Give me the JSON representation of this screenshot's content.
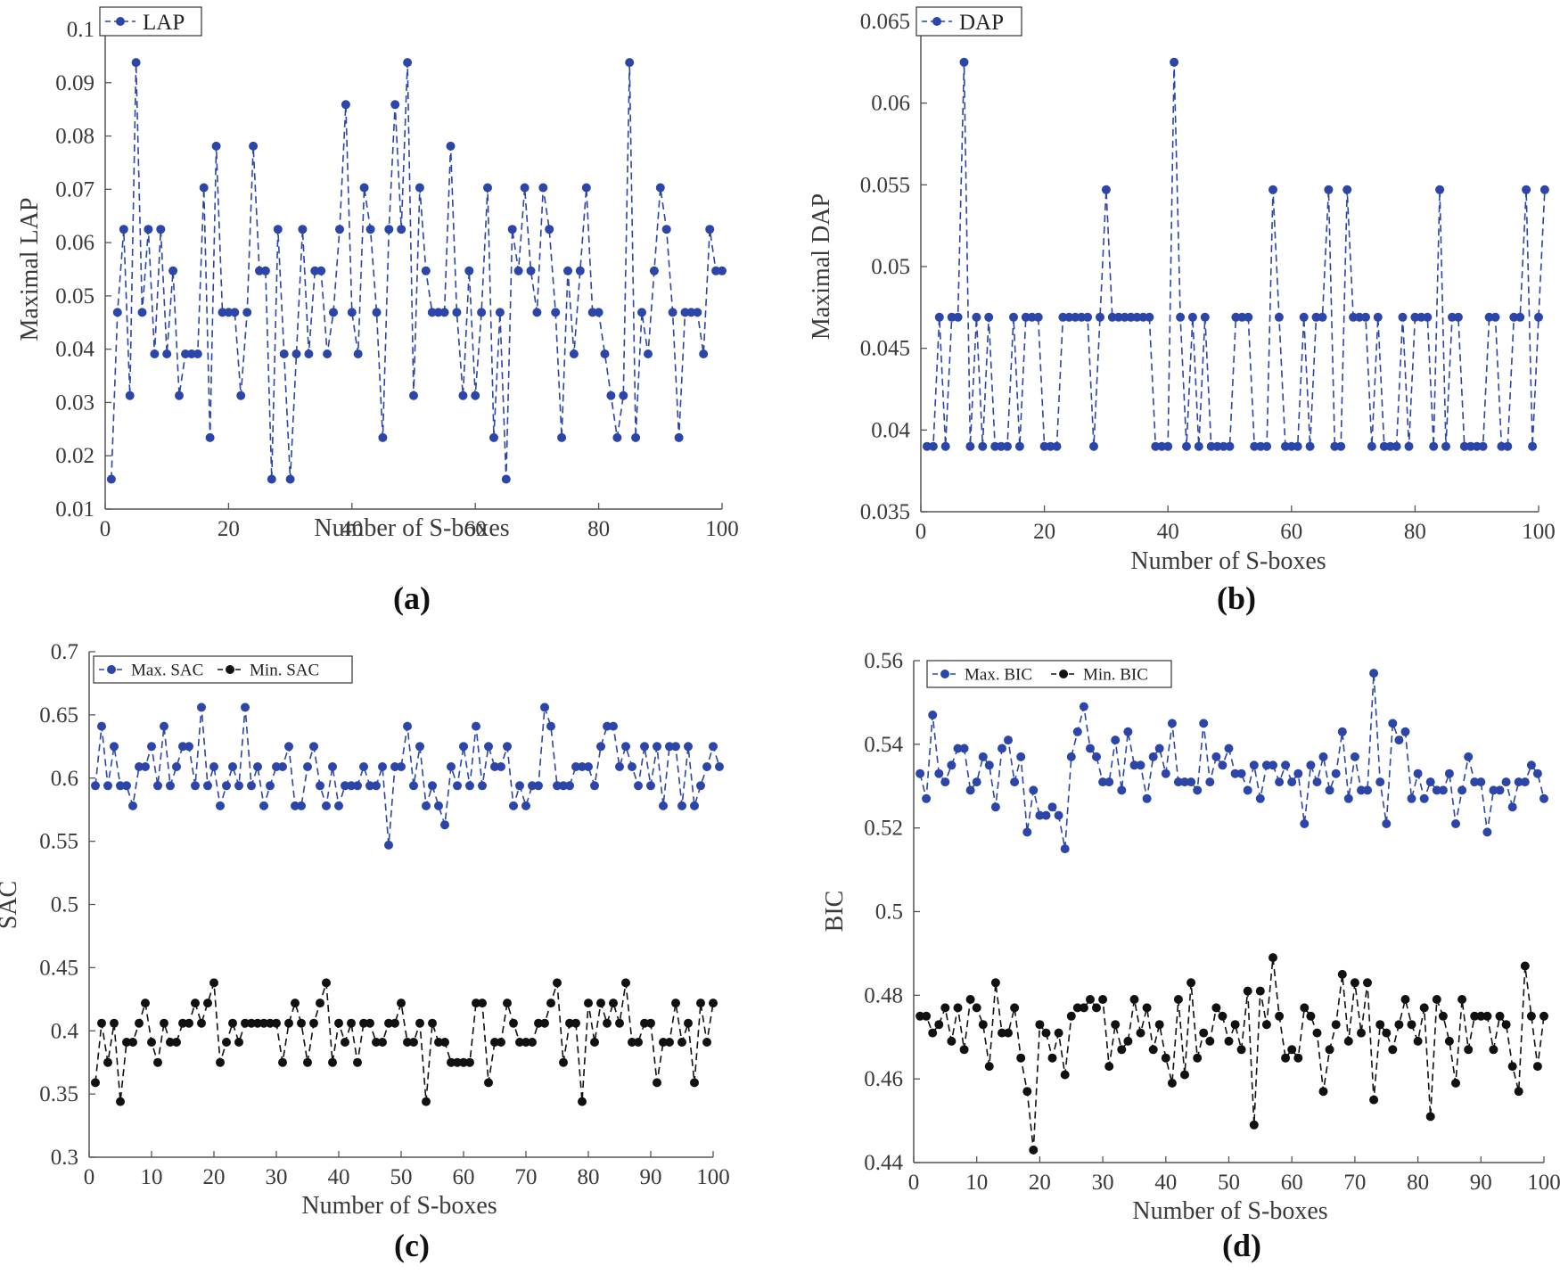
{
  "colors": {
    "blue": "#2c45a8",
    "black": "#111111",
    "axis": "#555555"
  },
  "chart_data": [
    {
      "id": "a",
      "type": "line",
      "caption": "(a)",
      "xlabel": "Number of S-boxes",
      "ylabel": "Maximal LAP",
      "xlim": [
        0,
        100
      ],
      "ylim": [
        0.01,
        0.1
      ],
      "xticks": [
        0,
        20,
        40,
        60,
        80,
        100
      ],
      "yticks": [
        0.01,
        0.02,
        0.03,
        0.04,
        0.05,
        0.06,
        0.07,
        0.08,
        0.09,
        0.1
      ],
      "xtick_labels": [
        "0",
        "20",
        "40",
        "60",
        "80",
        "100"
      ],
      "ytick_labels": [
        "0.01",
        "0.02",
        "0.03",
        "0.04",
        "0.05",
        "0.06",
        "0.07",
        "0.08",
        "0.09",
        "0.1"
      ],
      "legend": "top-left",
      "grid": false,
      "series": [
        {
          "name": "LAP",
          "color": "blue",
          "values": [
            0.0156,
            0.0469,
            0.0625,
            0.0313,
            0.0938,
            0.0469,
            0.0625,
            0.0391,
            0.0625,
            0.0391,
            0.0547,
            0.0313,
            0.0391,
            0.0391,
            0.0391,
            0.0703,
            0.0234,
            0.0781,
            0.0469,
            0.0469,
            0.0469,
            0.0313,
            0.0469,
            0.0781,
            0.0547,
            0.0547,
            0.0156,
            0.0625,
            0.0391,
            0.0156,
            0.0391,
            0.0625,
            0.0391,
            0.0547,
            0.0547,
            0.0391,
            0.0469,
            0.0625,
            0.0859,
            0.0469,
            0.0391,
            0.0703,
            0.0625,
            0.0469,
            0.0234,
            0.0625,
            0.0859,
            0.0625,
            0.0938,
            0.0313,
            0.0703,
            0.0547,
            0.0469,
            0.0469,
            0.0469,
            0.0781,
            0.0469,
            0.0313,
            0.0547,
            0.0313,
            0.0469,
            0.0703,
            0.0234,
            0.0469,
            0.0156,
            0.0625,
            0.0547,
            0.0703,
            0.0547,
            0.0469,
            0.0703,
            0.0625,
            0.0469,
            0.0234,
            0.0547,
            0.0391,
            0.0547,
            0.0703,
            0.0469,
            0.0469,
            0.0391,
            0.0313,
            0.0234,
            0.0313,
            0.0938,
            0.0234,
            0.0469,
            0.0391,
            0.0547,
            0.0703,
            0.0625,
            0.0469,
            0.0234,
            0.0469,
            0.0469,
            0.0469,
            0.0391,
            0.0625,
            0.0547,
            0.0547
          ]
        }
      ]
    },
    {
      "id": "b",
      "type": "line",
      "caption": "(b)",
      "xlabel": "Number of S-boxes",
      "ylabel": "Maximal DAP",
      "xlim": [
        0,
        100
      ],
      "ylim": [
        0.035,
        0.065
      ],
      "xticks": [
        0,
        20,
        40,
        60,
        80,
        100
      ],
      "yticks": [
        0.035,
        0.04,
        0.045,
        0.05,
        0.055,
        0.06,
        0.065
      ],
      "xtick_labels": [
        "0",
        "20",
        "40",
        "60",
        "80",
        "100"
      ],
      "ytick_labels": [
        "0.035",
        "0.04",
        "0.045",
        "0.05",
        "0.055",
        "0.06",
        "0.065"
      ],
      "legend": "top-left",
      "grid": false,
      "series": [
        {
          "name": "DAP",
          "color": "blue",
          "values": [
            0.039,
            0.039,
            0.0469,
            0.039,
            0.0469,
            0.0469,
            0.0625,
            0.039,
            0.0469,
            0.039,
            0.0469,
            0.039,
            0.039,
            0.039,
            0.0469,
            0.039,
            0.0469,
            0.0469,
            0.0469,
            0.039,
            0.039,
            0.039,
            0.0469,
            0.0469,
            0.0469,
            0.0469,
            0.0469,
            0.039,
            0.0469,
            0.0547,
            0.0469,
            0.0469,
            0.0469,
            0.0469,
            0.0469,
            0.0469,
            0.0469,
            0.039,
            0.039,
            0.039,
            0.0625,
            0.0469,
            0.039,
            0.0469,
            0.039,
            0.0469,
            0.039,
            0.039,
            0.039,
            0.039,
            0.0469,
            0.0469,
            0.0469,
            0.039,
            0.039,
            0.039,
            0.0547,
            0.0469,
            0.039,
            0.039,
            0.039,
            0.0469,
            0.039,
            0.0469,
            0.0469,
            0.0547,
            0.039,
            0.039,
            0.0547,
            0.0469,
            0.0469,
            0.0469,
            0.039,
            0.0469,
            0.039,
            0.039,
            0.039,
            0.0469,
            0.039,
            0.0469,
            0.0469,
            0.0469,
            0.039,
            0.0547,
            0.039,
            0.0469,
            0.0469,
            0.039,
            0.039,
            0.039,
            0.039,
            0.0469,
            0.0469,
            0.039,
            0.039,
            0.0469,
            0.0469,
            0.0547,
            0.039,
            0.0469,
            0.0547
          ]
        }
      ]
    },
    {
      "id": "c",
      "type": "line",
      "caption": "(c)",
      "xlabel": "Number of S-boxes",
      "ylabel": "SAC",
      "xlim": [
        0,
        100
      ],
      "ylim": [
        0.3,
        0.7
      ],
      "xticks": [
        0,
        10,
        20,
        30,
        40,
        50,
        60,
        70,
        80,
        90,
        100
      ],
      "yticks": [
        0.3,
        0.35,
        0.4,
        0.45,
        0.5,
        0.55,
        0.6,
        0.65,
        0.7
      ],
      "xtick_labels": [
        "0",
        "10",
        "20",
        "30",
        "40",
        "50",
        "60",
        "70",
        "80",
        "90",
        "100"
      ],
      "ytick_labels": [
        "0.3",
        "0.35",
        "0.4",
        "0.45",
        "0.5",
        "0.55",
        "0.6",
        "0.65",
        "0.7"
      ],
      "legend": "top-left",
      "grid": false,
      "series": [
        {
          "name": "Max. SAC",
          "color": "blue",
          "values": [
            0.594,
            0.641,
            0.594,
            0.625,
            0.594,
            0.594,
            0.578,
            0.609,
            0.609,
            0.625,
            0.594,
            0.641,
            0.594,
            0.609,
            0.625,
            0.625,
            0.594,
            0.656,
            0.594,
            0.609,
            0.578,
            0.594,
            0.609,
            0.594,
            0.656,
            0.594,
            0.609,
            0.578,
            0.594,
            0.609,
            0.609,
            0.625,
            0.578,
            0.578,
            0.609,
            0.625,
            0.594,
            0.578,
            0.609,
            0.578,
            0.594,
            0.594,
            0.594,
            0.609,
            0.594,
            0.594,
            0.609,
            0.547,
            0.609,
            0.609,
            0.641,
            0.594,
            0.625,
            0.578,
            0.594,
            0.578,
            0.563,
            0.609,
            0.594,
            0.625,
            0.594,
            0.641,
            0.594,
            0.625,
            0.609,
            0.609,
            0.625,
            0.578,
            0.594,
            0.578,
            0.594,
            0.594,
            0.656,
            0.641,
            0.594,
            0.594,
            0.594,
            0.609,
            0.609,
            0.609,
            0.594,
            0.625,
            0.641,
            0.641,
            0.609,
            0.625,
            0.609,
            0.594,
            0.625,
            0.594,
            0.625,
            0.578,
            0.625,
            0.625,
            0.578,
            0.625,
            0.578,
            0.594,
            0.609,
            0.625,
            0.609
          ]
        },
        {
          "name": "Min. SAC",
          "color": "black",
          "values": [
            0.359,
            0.406,
            0.375,
            0.406,
            0.344,
            0.391,
            0.391,
            0.406,
            0.422,
            0.391,
            0.375,
            0.406,
            0.391,
            0.391,
            0.406,
            0.406,
            0.422,
            0.406,
            0.422,
            0.438,
            0.375,
            0.391,
            0.406,
            0.391,
            0.406,
            0.406,
            0.406,
            0.406,
            0.406,
            0.406,
            0.375,
            0.406,
            0.422,
            0.406,
            0.375,
            0.406,
            0.422,
            0.438,
            0.375,
            0.406,
            0.391,
            0.406,
            0.375,
            0.406,
            0.406,
            0.391,
            0.391,
            0.406,
            0.406,
            0.422,
            0.391,
            0.391,
            0.406,
            0.344,
            0.406,
            0.391,
            0.391,
            0.375,
            0.375,
            0.375,
            0.375,
            0.422,
            0.422,
            0.359,
            0.391,
            0.391,
            0.422,
            0.406,
            0.391,
            0.391,
            0.391,
            0.406,
            0.406,
            0.422,
            0.438,
            0.375,
            0.406,
            0.406,
            0.344,
            0.422,
            0.391,
            0.422,
            0.406,
            0.422,
            0.406,
            0.438,
            0.391,
            0.391,
            0.406,
            0.406,
            0.359,
            0.391,
            0.391,
            0.422,
            0.391,
            0.406,
            0.359,
            0.422,
            0.391,
            0.422
          ]
        }
      ]
    },
    {
      "id": "d",
      "type": "line",
      "caption": "(d)",
      "xlabel": "Number of S-boxes",
      "ylabel": "BIC",
      "xlim": [
        0,
        100
      ],
      "ylim": [
        0.44,
        0.56
      ],
      "xticks": [
        0,
        10,
        20,
        30,
        40,
        50,
        60,
        70,
        80,
        90,
        100
      ],
      "yticks": [
        0.44,
        0.46,
        0.48,
        0.5,
        0.52,
        0.54,
        0.56
      ],
      "xtick_labels": [
        "0",
        "10",
        "20",
        "30",
        "40",
        "50",
        "60",
        "70",
        "80",
        "90",
        "100"
      ],
      "ytick_labels": [
        "0.44",
        "0.46",
        "0.48",
        "0.5",
        "0.52",
        "0.54",
        "0.56"
      ],
      "legend": "top-left",
      "grid": false,
      "series": [
        {
          "name": "Max. BIC",
          "color": "blue",
          "values": [
            0.533,
            0.527,
            0.547,
            0.533,
            0.531,
            0.535,
            0.539,
            0.539,
            0.529,
            0.531,
            0.537,
            0.535,
            0.525,
            0.539,
            0.541,
            0.531,
            0.537,
            0.519,
            0.529,
            0.523,
            0.523,
            0.525,
            0.523,
            0.515,
            0.537,
            0.543,
            0.549,
            0.539,
            0.537,
            0.531,
            0.531,
            0.541,
            0.529,
            0.543,
            0.535,
            0.535,
            0.527,
            0.537,
            0.539,
            0.533,
            0.545,
            0.531,
            0.531,
            0.531,
            0.529,
            0.545,
            0.531,
            0.537,
            0.535,
            0.539,
            0.533,
            0.533,
            0.529,
            0.535,
            0.527,
            0.535,
            0.535,
            0.531,
            0.535,
            0.531,
            0.533,
            0.521,
            0.535,
            0.531,
            0.537,
            0.529,
            0.533,
            0.543,
            0.527,
            0.537,
            0.529,
            0.529,
            0.557,
            0.531,
            0.521,
            0.545,
            0.541,
            0.543,
            0.527,
            0.533,
            0.527,
            0.531,
            0.529,
            0.529,
            0.533,
            0.521,
            0.529,
            0.537,
            0.531,
            0.531,
            0.519,
            0.529,
            0.529,
            0.531,
            0.525,
            0.531,
            0.531,
            0.535,
            0.533,
            0.527
          ]
        },
        {
          "name": "Min. BIC",
          "color": "black",
          "values": [
            0.475,
            0.475,
            0.471,
            0.473,
            0.477,
            0.469,
            0.477,
            0.467,
            0.479,
            0.477,
            0.473,
            0.463,
            0.483,
            0.471,
            0.471,
            0.477,
            0.465,
            0.457,
            0.443,
            0.473,
            0.471,
            0.465,
            0.471,
            0.461,
            0.475,
            0.477,
            0.477,
            0.479,
            0.477,
            0.479,
            0.463,
            0.473,
            0.467,
            0.469,
            0.479,
            0.471,
            0.477,
            0.467,
            0.473,
            0.465,
            0.459,
            0.479,
            0.461,
            0.483,
            0.465,
            0.471,
            0.469,
            0.477,
            0.475,
            0.469,
            0.473,
            0.467,
            0.481,
            0.449,
            0.481,
            0.473,
            0.489,
            0.475,
            0.465,
            0.467,
            0.465,
            0.477,
            0.475,
            0.471,
            0.457,
            0.467,
            0.473,
            0.485,
            0.469,
            0.483,
            0.471,
            0.483,
            0.455,
            0.473,
            0.471,
            0.467,
            0.473,
            0.479,
            0.473,
            0.469,
            0.477,
            0.451,
            0.479,
            0.475,
            0.469,
            0.459,
            0.479,
            0.467,
            0.475,
            0.475,
            0.475,
            0.467,
            0.475,
            0.473,
            0.463,
            0.457,
            0.487,
            0.475,
            0.463,
            0.475
          ]
        }
      ]
    }
  ]
}
